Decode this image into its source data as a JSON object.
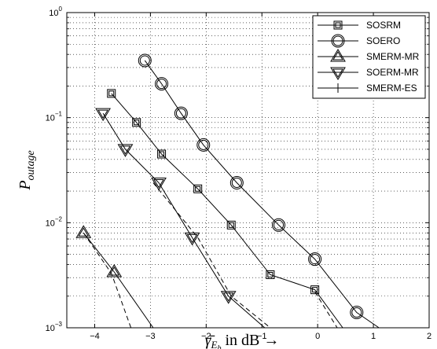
{
  "chart_data": {
    "type": "line",
    "xlabel": "γ̄E_b in dB →",
    "ylabel": "P_outage",
    "xlim": [
      -4.5,
      2
    ],
    "ylim": [
      0.001,
      1
    ],
    "yscale": "log",
    "grid": true,
    "legend_position": "top-right",
    "x_ticks": [
      "−4",
      "−3",
      "−2",
      "−1",
      "0",
      "1",
      "2"
    ],
    "y_ticks": [
      {
        "base": "10",
        "exp": "0"
      },
      {
        "base": "10",
        "exp": "−1"
      },
      {
        "base": "10",
        "exp": "−2"
      },
      {
        "base": "10",
        "exp": "−3"
      }
    ],
    "series": [
      {
        "name": "SOSRM",
        "marker": "square",
        "x": [
          -3.7,
          -3.25,
          -2.8,
          -2.15,
          -1.55,
          -0.85,
          -0.05,
          0.45
        ],
        "y": [
          0.17,
          0.09,
          0.045,
          0.021,
          0.0095,
          0.0032,
          0.0023,
          0.001
        ]
      },
      {
        "name": "SOERO",
        "marker": "circle",
        "x": [
          -3.1,
          -2.8,
          -2.45,
          -2.05,
          -1.45,
          -0.7,
          -0.05,
          0.7,
          1.1
        ],
        "y": [
          0.35,
          0.21,
          0.11,
          0.055,
          0.024,
          0.0095,
          0.0045,
          0.0014,
          0.001
        ]
      },
      {
        "name": "SMERM-MR",
        "marker": "triangle-up",
        "x": [
          -4.2,
          -3.65,
          -2.95
        ],
        "y": [
          0.008,
          0.0034,
          0.001
        ]
      },
      {
        "name": "SOERM-MR",
        "marker": "triangle-down",
        "x": [
          -3.85,
          -3.45,
          -2.85,
          -2.25,
          -1.6,
          -0.95
        ],
        "y": [
          0.11,
          0.05,
          0.024,
          0.0072,
          0.002,
          0.001
        ]
      },
      {
        "name": "SMERM-ES",
        "marker": "plus",
        "line": "dashed",
        "x": [
          -4.2,
          -3.7,
          -3.35,
          -2.95,
          -2.15,
          -1.55,
          -0.85,
          -0.05,
          0.35
        ],
        "y": [
          0.008,
          0.0033,
          0.001,
          0.024,
          0.0072,
          0.002,
          0.001,
          0.0022,
          0.001
        ]
      }
    ]
  }
}
